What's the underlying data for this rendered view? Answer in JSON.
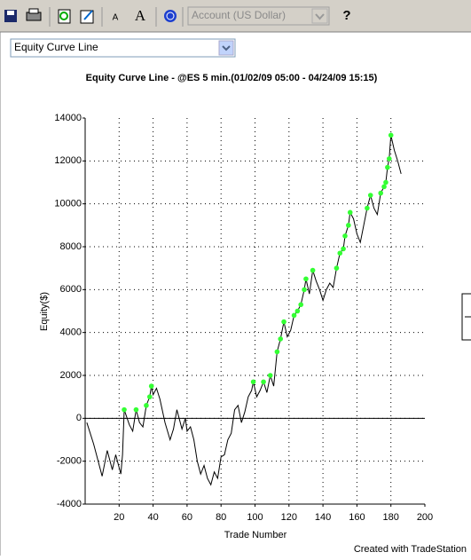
{
  "toolbar": {
    "font_down": "A",
    "font_up": "A",
    "account": "Account (US Dollar)",
    "help": "?"
  },
  "selector": {
    "value": "Equity Curve Line"
  },
  "footer": "Created with TradeStation",
  "chart_data": {
    "type": "line",
    "title": "Equity Curve Line - @ES 5 min.(01/02/09 05:00 - 04/24/09 15:15)",
    "x_label": "Trade Number",
    "y_label": "Equity($)",
    "xlim": [
      0,
      200
    ],
    "ylim": [
      -4000,
      14000
    ],
    "xticks": [
      20,
      40,
      60,
      80,
      100,
      120,
      140,
      160,
      180,
      200
    ],
    "yticks": [
      -4000,
      -2000,
      0,
      2000,
      4000,
      6000,
      8000,
      10000,
      12000,
      14000
    ],
    "grid": true,
    "series": [
      {
        "color": "#000000",
        "x": [
          1,
          5,
          10,
          13,
          16,
          18,
          21,
          22,
          23,
          26,
          28,
          30,
          32,
          34,
          36,
          37,
          38,
          39,
          40,
          42,
          44,
          47,
          50,
          52,
          54,
          57,
          59,
          60,
          62,
          64,
          66,
          68,
          70,
          72,
          74,
          76,
          78,
          80,
          82,
          84,
          86,
          88,
          90,
          92,
          94,
          96,
          98,
          99,
          101,
          103,
          105,
          107,
          109,
          111,
          113,
          115,
          117,
          119,
          121,
          123,
          125,
          127,
          129,
          130,
          132,
          134,
          136,
          138,
          140,
          142,
          144,
          146,
          148,
          150,
          152,
          153,
          155,
          156,
          158,
          160,
          162,
          164,
          166,
          168,
          170,
          172,
          174,
          176,
          177,
          178,
          179,
          180,
          182,
          184,
          186
        ],
        "values": [
          -200,
          -1200,
          -2700,
          -1500,
          -2400,
          -1700,
          -2600,
          -1700,
          400,
          -300,
          -600,
          400,
          -200,
          -400,
          600,
          800,
          1000,
          1500,
          1100,
          1400,
          900,
          -200,
          -1000,
          -500,
          400,
          -500,
          0,
          -600,
          -400,
          -1000,
          -2000,
          -2600,
          -2200,
          -2800,
          -3100,
          -2500,
          -2800,
          -1800,
          -1700,
          -1000,
          -700,
          400,
          600,
          -200,
          300,
          1000,
          1300,
          1700,
          1000,
          1300,
          1700,
          1200,
          2000,
          1500,
          3100,
          3700,
          4500,
          3800,
          4100,
          4800,
          5000,
          5300,
          6000,
          6500,
          5800,
          6900,
          6400,
          6000,
          5500,
          6000,
          6300,
          6100,
          7000,
          7700,
          7900,
          8500,
          9000,
          9600,
          9300,
          8600,
          8200,
          9000,
          9800,
          10400,
          9800,
          9500,
          10500,
          10800,
          11000,
          11700,
          12100,
          13200,
          12500,
          12000,
          11400
        ]
      },
      {
        "color": "#33ff33",
        "marker": true,
        "x": [
          23,
          30,
          36,
          38,
          39,
          99,
          105,
          109,
          113,
          115,
          117,
          123,
          125,
          127,
          129,
          130,
          134,
          148,
          150,
          152,
          153,
          155,
          156,
          166,
          168,
          174,
          176,
          177,
          178,
          179,
          180
        ],
        "values": [
          400,
          400,
          600,
          1000,
          1500,
          1700,
          1700,
          2000,
          3100,
          3700,
          4500,
          4800,
          5000,
          5300,
          6000,
          6500,
          6900,
          7000,
          7700,
          7900,
          8500,
          9000,
          9600,
          9800,
          10400,
          10500,
          10800,
          11000,
          11700,
          12100,
          13200
        ]
      }
    ]
  }
}
